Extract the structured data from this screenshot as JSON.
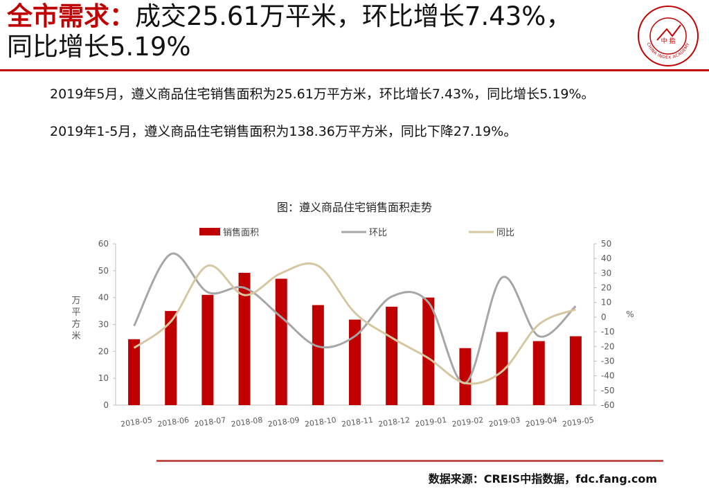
{
  "header": {
    "title_accent": "全市需求：",
    "title_line1": "成交25.61万平米，环比增长7.43%，",
    "title_line2": "同比增长5.19%"
  },
  "logo": {
    "text": "CHINA INDEX ACADEMY",
    "center_text": "中 指"
  },
  "summary": {
    "line1": "2019年5月，遵义商品住宅销售面积为25.61万平方米，环比增长7.43%，同比增长5.19%。",
    "line2": "2019年1-5月，遵义商品住宅销售面积为138.36万平方米，同比下降27.19%。"
  },
  "colors": {
    "brand": "#c00000",
    "bar": "#c00000",
    "mom": "#a6a6a6",
    "yoy": "#d5c7a1",
    "rule": "#c0504d"
  },
  "chart_data": {
    "type": "bar",
    "title": "图：遵义商品住宅销售面积走势",
    "categories": [
      "2018-05",
      "2018-06",
      "2018-07",
      "2018-08",
      "2018-09",
      "2018-10",
      "2018-11",
      "2018-12",
      "2019-01",
      "2019-02",
      "2019-03",
      "2019-04",
      "2019-05"
    ],
    "ylabel": "万平方米",
    "y2label": "%",
    "ylim": [
      0,
      60
    ],
    "yticks": [
      "0",
      "10",
      "20",
      "30",
      "40",
      "50",
      "60"
    ],
    "y2lim": [
      -60,
      50
    ],
    "y2ticks": [
      "-60",
      "-50",
      "-40",
      "-30",
      "-20",
      "-10",
      "0",
      "10",
      "20",
      "30",
      "40",
      "50"
    ],
    "legend_position": "top",
    "grid": false,
    "series": [
      {
        "name": "销售面积",
        "kind": "bar",
        "axis": "left",
        "values": [
          24.5,
          35,
          41,
          49.2,
          47,
          37.2,
          31.8,
          36.6,
          40,
          21.2,
          27.2,
          23.8,
          25.61
        ]
      },
      {
        "name": "环比",
        "kind": "line",
        "axis": "right",
        "values": [
          -6,
          43,
          17,
          20,
          0,
          -20,
          -13,
          14,
          10,
          -45,
          27,
          -13,
          7.43
        ]
      },
      {
        "name": "同比",
        "kind": "line",
        "axis": "right",
        "values": [
          -21,
          -3,
          35,
          15,
          30,
          35,
          3,
          -14,
          -28,
          -45,
          -37,
          -5,
          5.19
        ]
      }
    ]
  },
  "footer": {
    "source": "数据来源：CREIS中指数据，fdc.fang.com"
  }
}
